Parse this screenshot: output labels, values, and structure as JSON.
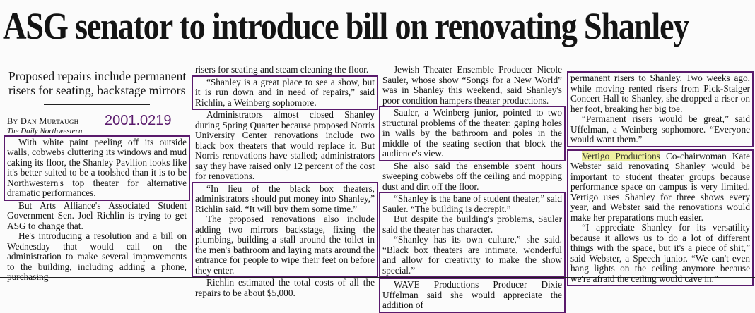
{
  "headline": "ASG senator to introduce bill on renovating Shanley",
  "subhead": "Proposed repairs include permanent risers for seating, backstage mirrors",
  "byline": "By Dan Murtaugh",
  "publication": "The Daily Northwestern",
  "date_stamp": "2001.0219",
  "highlight": "Vertigo Productions",
  "box_color": "#5a1a6c",
  "paragraphs": {
    "p1": "With white paint peeling off its outside walls, cobwebs cluttering its windows and mud caking its floor, the Shanley Pavilion looks like it's better suited to be a toolshed than it is to be Northwestern's top theater for alternative dramatic performances.",
    "p2": "But Arts Alliance's Associated Student Government Sen. Joel Richlin is trying to get ASG to change that.",
    "p3": "He's introducing a resolution and a bill on Wednesday that would call on the administration to make several improvements to the building, including adding a phone, purchasing",
    "p4": "risers for seating and steam cleaning the floor.",
    "p5": "“Shanley is a great place to see a show, but it is run down and in need of repairs,” said Richlin, a Weinberg sophomore.",
    "p6": "Administrators almost closed Shanley during Spring Quarter because proposed Norris University Center renovations include two black box theaters that would replace it. But Norris renovations have stalled; administrators say they have raised only 12 percent of the cost for renovations.",
    "p7": "“In lieu of the black box theaters, administrators should put money into Shanley,” Richlin said. “It will buy them some time.”",
    "p8": "The proposed renovations also include adding two mirrors backstage, fixing the plumbing, building a stall around the toilet in the men's bathroom and laying mats around the entrance for people to wipe their feet on before they enter.",
    "p9": "Richlin estimated the total costs of all the repairs to be about $5,000.",
    "p10": "Jewish Theater Ensemble Producer Nicole Sauler, whose show “Songs for a New World” was in Shanley this weekend, said Shanley's poor condition hampers theater productions.",
    "p11": "Sauler, a Weinberg junior, pointed to two structural problems of the theater: gaping holes in walls by the bathroom and poles in the middle of the seating section that block the audience's view.",
    "p12": "She also said the ensemble spent hours sweeping cobwebs off the ceiling and mopping dust and dirt off the floor.",
    "p13": "“Shanley is the bane of student theater,” said Sauler. “The building is decrepit.”",
    "p14": "But despite the building's problems, Sauler said the theater has character.",
    "p15": "“Shanley has its own culture,” she said. “Black box theaters are intimate, wonderful and allow for creativity to make the show special.”",
    "p16": "WAVE Productions Producer Dixie Uffelman said she would appreciate the addition of",
    "p17": "permanent risers to Shanley. Two weeks ago, while moving rented risers from Pick-Staiger Concert Hall to Shanley, she dropped a riser on her foot, breaking her big toe.",
    "p18": "“Permanent risers would be great,” said Uffelman, a Weinberg sophomore. “Everyone would want them.”",
    "p19_rest": " Co-chairwoman Kate Webster said renovating Shanley would be important to student theater groups because performance space on campus is very limited. Vertigo uses Shanley for three shows every year, and Webster said the renovations would make her preparations much easier.",
    "p20": "“I appreciate Shanley for its versatility because it allows us to do a lot of different things with the space, but it's a piece of shit,” said Webster, a Speech junior. “We can't even hang lights on the ceiling anymore because we're afraid the ceiling would cave in.”"
  }
}
